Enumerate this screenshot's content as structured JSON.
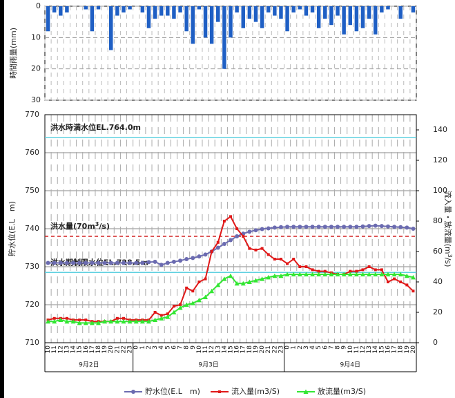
{
  "chart_data": [
    {
      "type": "bar",
      "y_label": "時間雨量(mm)",
      "color": "#1f5fc4",
      "y_inverted": true,
      "ylim": [
        0,
        30
      ],
      "yticks": [
        0,
        10,
        20,
        30
      ],
      "values": [
        8,
        2,
        3,
        2,
        0,
        0,
        1,
        8,
        1,
        0,
        14,
        3,
        2,
        1,
        0,
        2,
        7,
        4,
        3,
        3,
        4,
        2,
        8,
        12,
        1,
        10,
        12,
        5,
        20,
        10,
        2,
        7,
        4,
        5,
        7,
        2,
        3,
        4,
        8,
        2,
        1,
        3,
        2,
        7,
        4,
        6,
        3,
        9,
        6,
        8,
        7,
        4,
        9,
        2,
        1,
        0,
        4,
        0,
        2
      ]
    },
    {
      "type": "line",
      "y_label": "貯水位(E.L　m)",
      "y2_label": [
        "流入量・放流量(m",
        "3",
        "/s)"
      ],
      "categories": [
        "10",
        "11",
        "12",
        "13",
        "14",
        "15",
        "16",
        "17",
        "18",
        "19",
        "20",
        "21",
        "22",
        "23",
        "0",
        "1",
        "2",
        "3",
        "4",
        "5",
        "6",
        "7",
        "8",
        "9",
        "10",
        "11",
        "12",
        "13",
        "14",
        "15",
        "16",
        "17",
        "18",
        "19",
        "20",
        "21",
        "22",
        "23",
        "0",
        "1",
        "2",
        "3",
        "4",
        "5",
        "6",
        "7",
        "8",
        "9",
        "10",
        "11",
        "12",
        "13",
        "14",
        "15",
        "16",
        "17",
        "18",
        "19",
        "20"
      ],
      "day_labels": [
        "9月2日",
        "9月3日",
        "9月4日"
      ],
      "ylim": [
        710,
        770
      ],
      "yticks": [
        710,
        720,
        730,
        740,
        750,
        760,
        770
      ],
      "y2lim": [
        0,
        150
      ],
      "y2ticks": [
        0,
        20,
        40,
        60,
        80,
        100,
        120,
        140
      ],
      "grid": true,
      "series": [
        {
          "name": "貯水位(E.L　m)",
          "color": "#6b6bb0",
          "marker": "circle",
          "axis": "y",
          "values": [
            731,
            731,
            731,
            731,
            731,
            731,
            731,
            731,
            731,
            731,
            731,
            731,
            731,
            731,
            731,
            731,
            731.2,
            731.3,
            730.5,
            731,
            731.3,
            731.6,
            732,
            732.3,
            732.7,
            733.2,
            734,
            735,
            736,
            737,
            738,
            738.7,
            739.2,
            739.6,
            739.9,
            740.1,
            740.3,
            740.4,
            740.5,
            740.5,
            740.5,
            740.5,
            740.5,
            740.5,
            740.5,
            740.5,
            740.5,
            740.5,
            740.5,
            740.5,
            740.6,
            740.7,
            740.8,
            740.7,
            740.6,
            740.5,
            740.4,
            740.3,
            740
          ]
        },
        {
          "name": "流入量(m3/S)",
          "color": "#e01818",
          "marker": "square",
          "axis": "y2",
          "values": [
            15,
            16,
            16,
            16,
            15,
            15,
            15,
            14,
            14,
            14,
            14,
            16,
            16,
            15,
            15,
            15,
            15,
            20,
            18,
            19,
            24,
            25,
            36,
            34,
            40,
            42,
            60,
            66,
            80,
            83,
            75,
            70,
            62,
            61,
            62,
            58,
            55,
            55,
            52,
            55,
            50,
            50,
            48,
            47,
            47,
            46,
            45,
            45,
            47,
            47,
            48,
            50,
            48,
            48,
            40,
            42,
            40,
            38,
            34
          ]
        },
        {
          "name": "放流量(m3/S)",
          "color": "#33e633",
          "marker": "triangle",
          "axis": "y2",
          "values": [
            14,
            14,
            15,
            14,
            14,
            13,
            13,
            13,
            13,
            14,
            14,
            14,
            14,
            14,
            14,
            14,
            14,
            15,
            16,
            17,
            20,
            23,
            25,
            26,
            28,
            30,
            34,
            38,
            42,
            44,
            39,
            39,
            40,
            41,
            42,
            43,
            44,
            44,
            45,
            45,
            45,
            45,
            45,
            45,
            45,
            45,
            45,
            45,
            45,
            45,
            45,
            45,
            45,
            45,
            45,
            45,
            45,
            44,
            43
          ]
        }
      ],
      "reference_lines": [
        {
          "text": [
            "洪水時満水位EL.764.0m"
          ],
          "value": 764,
          "axis": "y",
          "color": "#5fd0e0",
          "style": "solid"
        },
        {
          "text": [
            "洪水量(70m",
            "3",
            "/s)"
          ],
          "value": 70,
          "axis": "y2",
          "color": "#d02020",
          "style": "dashed"
        },
        {
          "text": [
            "洪水期制限水位EL.728.5m"
          ],
          "value": 728.5,
          "axis": "y",
          "color": "#5fd0e0",
          "style": "solid"
        }
      ]
    }
  ]
}
